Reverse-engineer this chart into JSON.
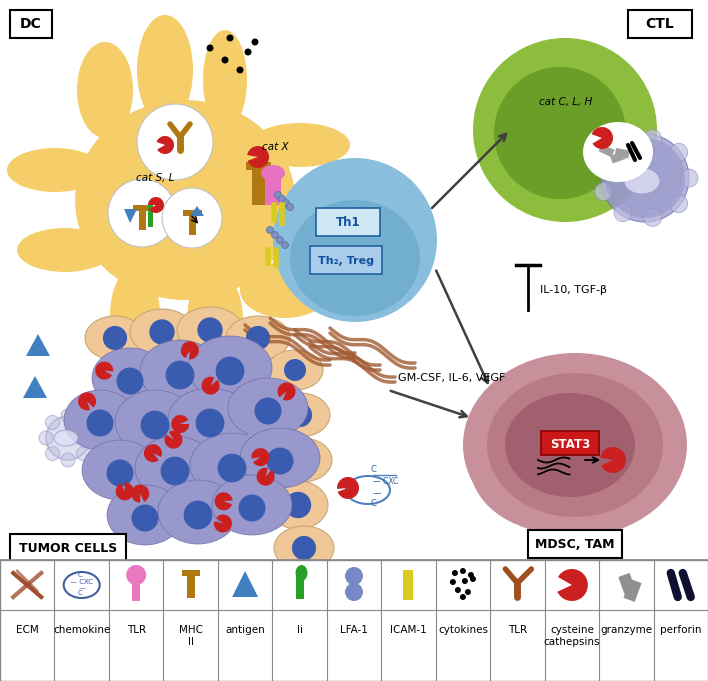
{
  "bg_color": "#ffffff",
  "dc_label": "DC",
  "ctl_label": "CTL",
  "tumor_label": "TUMOR CELLS",
  "mdsc_label": "MDSC, TAM",
  "cat_sl_label": "cat S, L",
  "cat_x_label": "cat X",
  "cat_clh_label": "cat C, L, H",
  "th1_label": "Th1",
  "th2_label": "Th₂, Treg",
  "il10_label": "IL-10, TGF-β",
  "gmcsf_label": "GM-CSF, IL-6, VEGF",
  "stat3_label": "STAT3",
  "legend_items": [
    "ECM",
    "chemokine",
    "TLR",
    "MHC\nII",
    "antigen",
    "Ii",
    "LFA-1",
    "ICAM-1",
    "cytokines",
    "TLR",
    "cysteine\ncathepsins",
    "granzyme",
    "perforin"
  ],
  "dc_color": "#F5CE6A",
  "dc_edge": "#E8B830",
  "th_color": "#89BFDD",
  "th_dark": "#5A9EC5",
  "ctl_outer": "#8CBD3C",
  "ctl_inner": "#6A9E28",
  "purple_cell": "#9898CC",
  "purple_light": "#C0C0E0",
  "purple_bubble": "#A8A8D8",
  "peach_cell": "#F0C898",
  "blue_nuc": "#3A5CB0",
  "brown_fiber": "#A05A30",
  "mdsc_outer": "#C8909A",
  "mdsc_mid": "#B87A85",
  "mdsc_inner": "#A06070",
  "red_cathepsin": "#CC2020",
  "gold_mhc": "#B07810",
  "pink_lfa": "#E870C0",
  "green_ii": "#28A028",
  "blue_lfa": "#5080B0",
  "yellow_icam": "#D8CC20"
}
